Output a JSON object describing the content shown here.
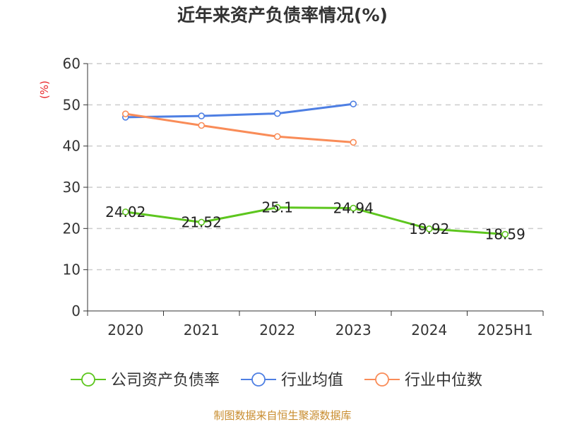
{
  "title": "近年来资产负债率情况(%)",
  "source": "制图数据来自恒生聚源数据库",
  "colors": {
    "company": "#5DC61E",
    "industry_avg": "#4E7FE3",
    "industry_median": "#F98C58",
    "axis_unit": "#E8262A",
    "source": "#C88C2E",
    "grid": "#CCCCCC",
    "axis": "#333333"
  },
  "chart_data": {
    "type": "line",
    "title": "近年来资产负债率情况(%)",
    "ylabel": "(%)",
    "ylim": [
      0,
      60
    ],
    "yticks": [
      0,
      10,
      20,
      30,
      40,
      50,
      60
    ],
    "grid": true,
    "legend_position": "bottom",
    "categories": [
      "2020",
      "2021",
      "2022",
      "2023",
      "2024",
      "2025H1"
    ],
    "series": [
      {
        "name": "公司资产负债率",
        "color": "#5DC61E",
        "values": [
          24.02,
          21.52,
          25.1,
          24.94,
          19.92,
          18.59
        ],
        "labels": [
          "24.02",
          "21.52",
          "25.1",
          "24.94",
          "19.92",
          "18.59"
        ],
        "show_labels": true
      },
      {
        "name": "行业均值",
        "color": "#4E7FE3",
        "values": [
          47.0,
          47.3,
          47.9,
          50.2,
          null,
          null
        ],
        "show_labels": false
      },
      {
        "name": "行业中位数",
        "color": "#F98C58",
        "values": [
          47.8,
          45.0,
          42.3,
          40.9,
          null,
          null
        ],
        "show_labels": false
      }
    ]
  }
}
